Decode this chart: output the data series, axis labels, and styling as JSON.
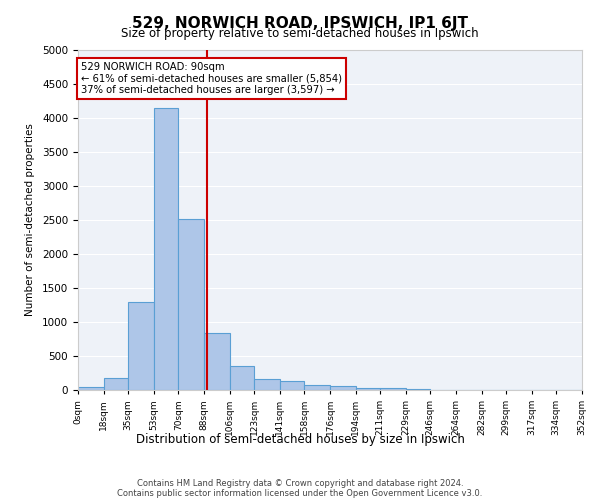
{
  "title": "529, NORWICH ROAD, IPSWICH, IP1 6JT",
  "subtitle": "Size of property relative to semi-detached houses in Ipswich",
  "xlabel": "Distribution of semi-detached houses by size in Ipswich",
  "ylabel": "Number of semi-detached properties",
  "bar_color": "#aec6e8",
  "bar_edge_color": "#5a9fd4",
  "annotation_box_color": "#cc0000",
  "vline_color": "#cc0000",
  "background_color": "#eef2f8",
  "grid_color": "#ffffff",
  "bins": [
    0,
    18,
    35,
    53,
    70,
    88,
    106,
    123,
    141,
    158,
    176,
    194,
    211,
    229,
    246,
    264,
    282,
    299,
    317,
    334,
    352
  ],
  "bin_labels": [
    "0sqm",
    "18sqm",
    "35sqm",
    "53sqm",
    "70sqm",
    "88sqm",
    "106sqm",
    "123sqm",
    "141sqm",
    "158sqm",
    "176sqm",
    "194sqm",
    "211sqm",
    "229sqm",
    "246sqm",
    "264sqm",
    "282sqm",
    "299sqm",
    "317sqm",
    "334sqm",
    "352sqm"
  ],
  "values": [
    40,
    170,
    1300,
    4150,
    2520,
    840,
    360,
    160,
    130,
    75,
    65,
    30,
    30,
    10,
    5,
    5,
    5,
    5,
    5,
    0
  ],
  "property_size": 90,
  "property_label": "529 NORWICH ROAD: 90sqm",
  "pct_smaller": 61,
  "count_smaller": 5854,
  "pct_larger": 37,
  "count_larger": 3597,
  "ylim": [
    0,
    5000
  ],
  "yticks": [
    0,
    500,
    1000,
    1500,
    2000,
    2500,
    3000,
    3500,
    4000,
    4500,
    5000
  ],
  "footer_line1": "Contains HM Land Registry data © Crown copyright and database right 2024.",
  "footer_line2": "Contains public sector information licensed under the Open Government Licence v3.0."
}
